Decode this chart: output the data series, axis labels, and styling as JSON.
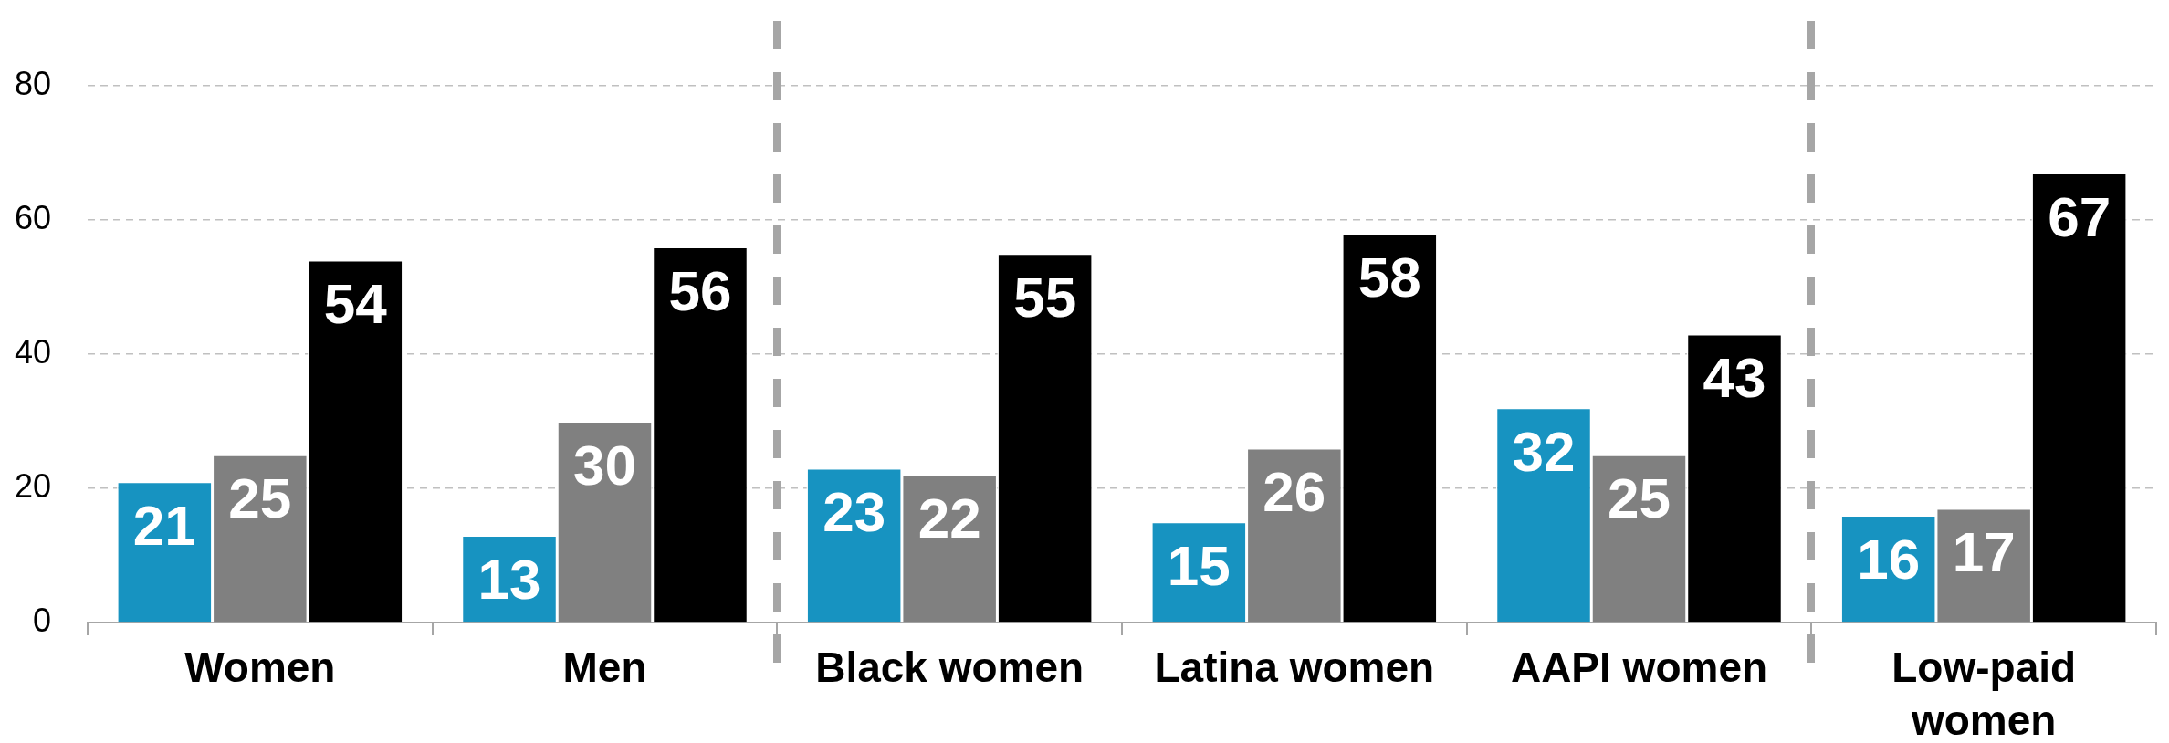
{
  "chart_data": {
    "type": "bar",
    "categories": [
      "Women",
      "Men",
      "Black women",
      "Latina women",
      "AAPI women",
      "Low-paid women"
    ],
    "series": [
      {
        "color": "#1793c1",
        "values": [
          21,
          13,
          23,
          15,
          32,
          16
        ]
      },
      {
        "color": "#808080",
        "values": [
          25,
          30,
          22,
          26,
          25,
          17
        ]
      },
      {
        "color": "#000000",
        "values": [
          54,
          56,
          55,
          58,
          43,
          67
        ]
      }
    ],
    "ylim": [
      0,
      80
    ],
    "yticks": [
      0,
      20,
      40,
      60,
      80
    ],
    "grid": "y",
    "legend": false,
    "data_labels": true
  }
}
